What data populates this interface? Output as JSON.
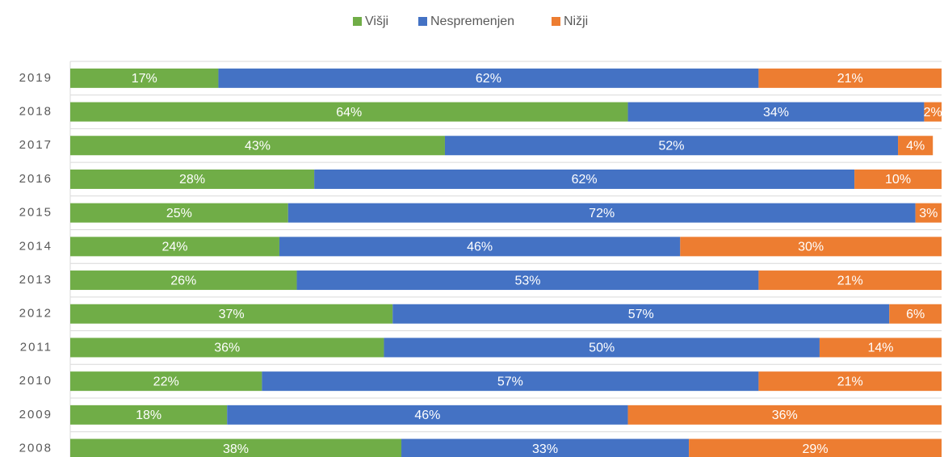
{
  "chart_data": {
    "type": "stacked-bar-horizontal",
    "categories": [
      "2019",
      "2018",
      "2017",
      "2016",
      "2015",
      "2014",
      "2013",
      "2012",
      "2011",
      "2010",
      "2009",
      "2008"
    ],
    "xlim": [
      0,
      100
    ],
    "series": [
      {
        "name": "Višji",
        "color": "#70ad47",
        "values": [
          17,
          64,
          43,
          28,
          25,
          24,
          26,
          37,
          36,
          22,
          18,
          38
        ],
        "value_labels": [
          "17%",
          "64%",
          "43%",
          "28%",
          "25%",
          "24%",
          "26%",
          "37%",
          "36%",
          "22%",
          "18%",
          "38%"
        ]
      },
      {
        "name": "Nespremenjen",
        "color": "#4472c4",
        "values": [
          62,
          34,
          52,
          62,
          72,
          46,
          53,
          57,
          50,
          57,
          46,
          33
        ],
        "value_labels": [
          "62%",
          "34%",
          "52%",
          "62%",
          "72%",
          "46%",
          "53%",
          "57%",
          "50%",
          "57%",
          "46%",
          "33%"
        ]
      },
      {
        "name": "Nižji",
        "color": "#ed7d31",
        "values": [
          21,
          2,
          4,
          10,
          3,
          30,
          21,
          6,
          14,
          21,
          36,
          29
        ],
        "value_labels": [
          "21%",
          "2%",
          "4%",
          "10%",
          "3%",
          "30%",
          "21%",
          "6%",
          "14%",
          "21%",
          "36%",
          "29%"
        ]
      }
    ],
    "legend": "top"
  }
}
